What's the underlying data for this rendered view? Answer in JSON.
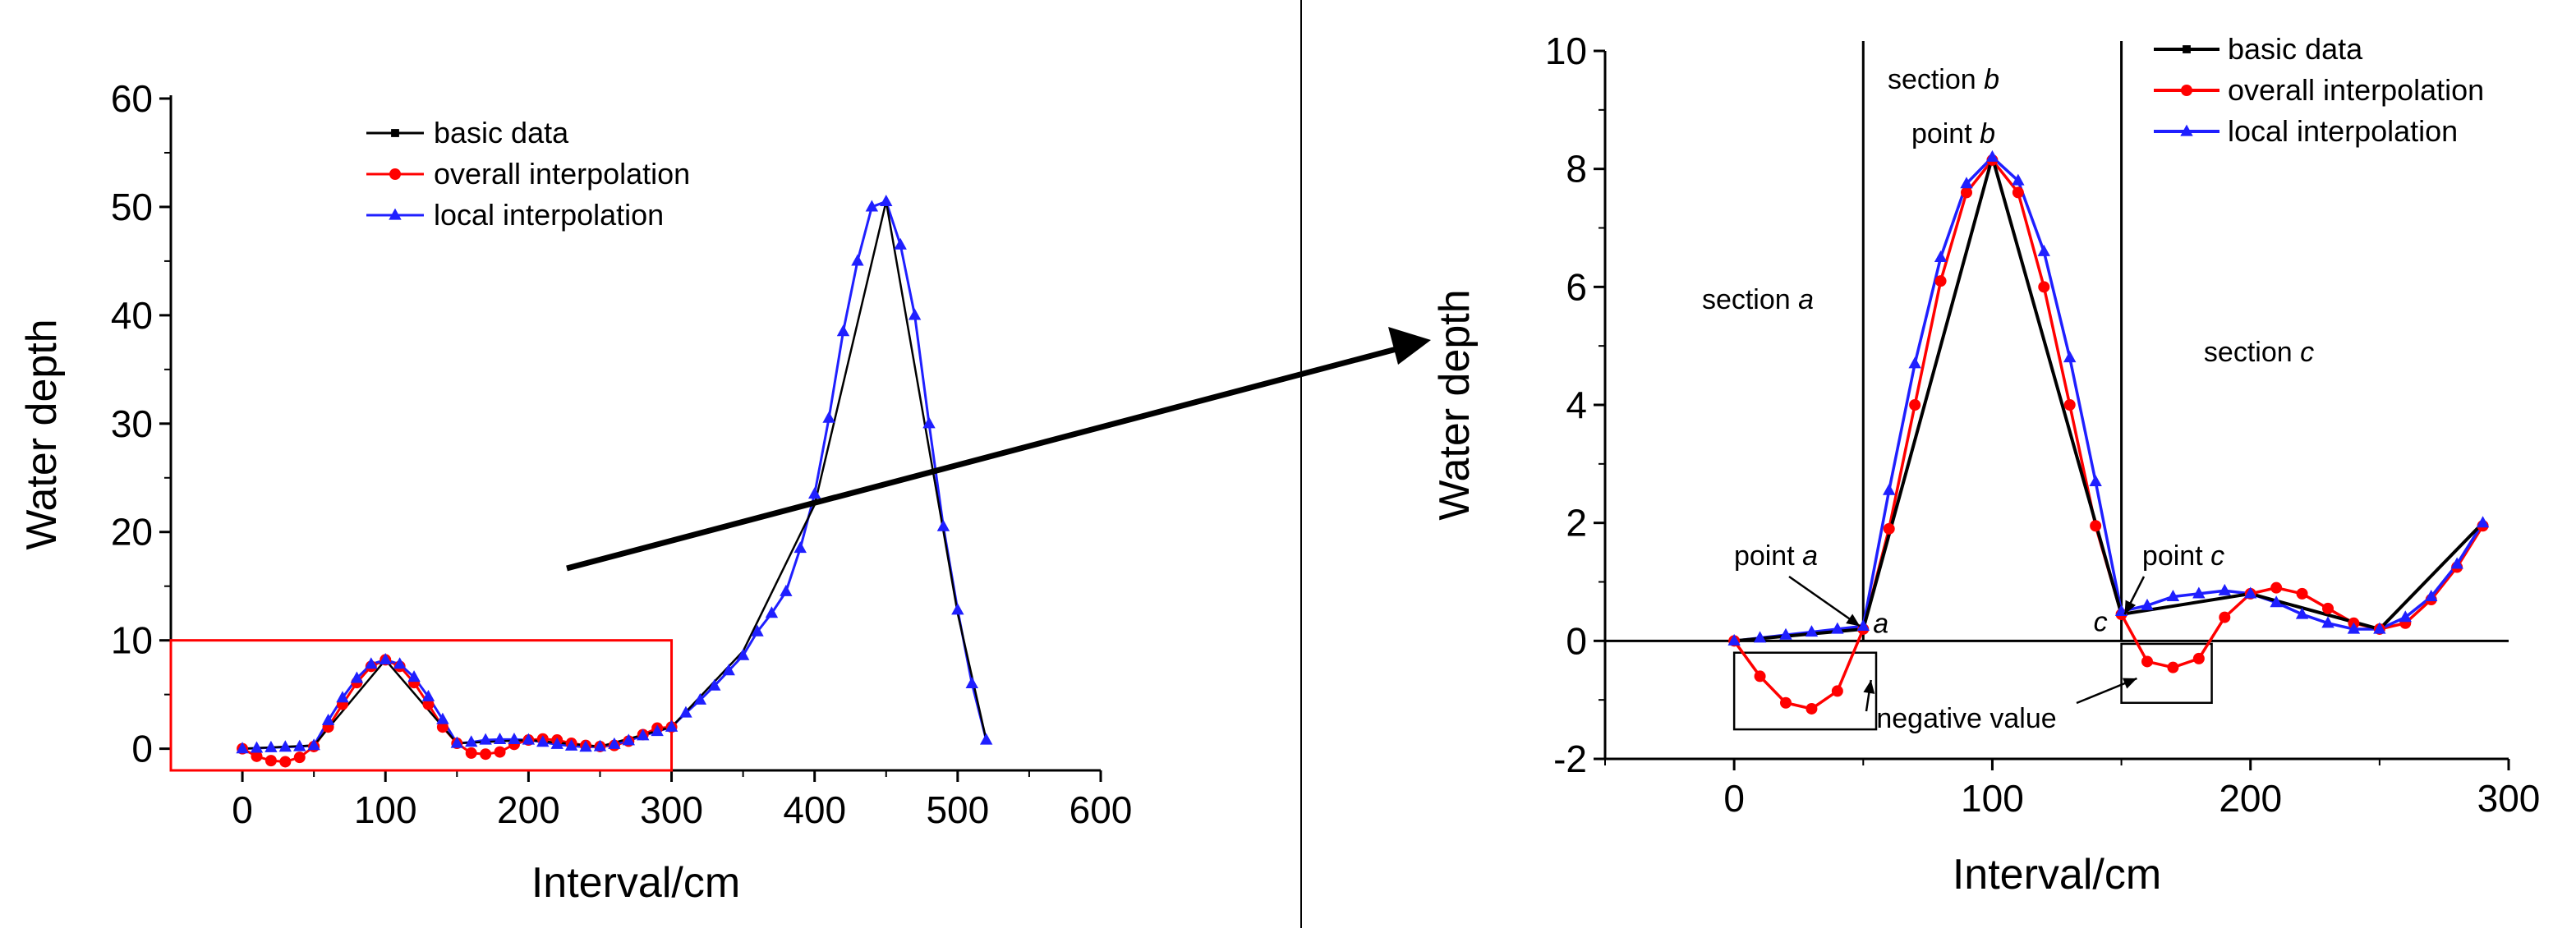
{
  "colors": {
    "basic": "#000000",
    "overall": "#ff0000",
    "local": "#1f1fff",
    "highlight": "#ff0000"
  },
  "legend": [
    "basic data",
    "overall interpolation",
    "local interpolation"
  ],
  "chart_data": [
    {
      "type": "line",
      "xlabel": "Interval/cm",
      "ylabel": "Water depth",
      "xlim": [
        -50,
        600
      ],
      "ylim": [
        -2,
        60
      ],
      "xticks": [
        "0",
        "100",
        "200",
        "300",
        "400",
        "500",
        "600"
      ],
      "yticks": [
        "0",
        "10",
        "20",
        "30",
        "40",
        "50",
        "60"
      ],
      "highlight_region": {
        "x": [
          -50,
          300
        ],
        "y": [
          -2,
          10
        ]
      },
      "series": [
        {
          "name": "basic data",
          "x": [
            0,
            50,
            100,
            150,
            200,
            250,
            300,
            350,
            400,
            450,
            500,
            520
          ],
          "y": [
            0,
            0.3,
            8.2,
            0.5,
            0.8,
            0.2,
            2.0,
            9.0,
            22.5,
            50.5,
            12.5,
            0.8
          ]
        },
        {
          "name": "overall interpolation",
          "x": [
            0,
            10,
            20,
            30,
            40,
            50,
            60,
            70,
            80,
            90,
            100,
            110,
            120,
            130,
            140,
            150,
            160,
            170,
            180,
            190,
            200,
            210,
            220,
            230,
            240,
            250,
            260,
            270,
            280,
            290,
            300
          ],
          "y": [
            0,
            -0.7,
            -1.1,
            -1.2,
            -0.8,
            0.2,
            2.0,
            4.1,
            6.1,
            7.6,
            8.2,
            7.6,
            6.1,
            4.1,
            2.0,
            0.5,
            -0.4,
            -0.5,
            -0.3,
            0.4,
            0.8,
            0.9,
            0.8,
            0.5,
            0.3,
            0.2,
            0.3,
            0.7,
            1.3,
            1.9,
            2.0
          ]
        },
        {
          "name": "local interpolation",
          "x": [
            0,
            10,
            20,
            30,
            40,
            50,
            60,
            70,
            80,
            90,
            100,
            110,
            120,
            130,
            140,
            150,
            160,
            170,
            180,
            190,
            200,
            210,
            220,
            230,
            240,
            250,
            260,
            270,
            280,
            290,
            300,
            310,
            320,
            330,
            340,
            350,
            360,
            370,
            380,
            390,
            400,
            410,
            420,
            430,
            440,
            450,
            460,
            470,
            480,
            490,
            500,
            510,
            520
          ],
          "y": [
            0,
            0.05,
            0.1,
            0.15,
            0.2,
            0.3,
            2.6,
            4.7,
            6.5,
            7.8,
            8.2,
            7.8,
            6.6,
            4.8,
            2.7,
            0.5,
            0.6,
            0.8,
            0.85,
            0.85,
            0.8,
            0.6,
            0.4,
            0.25,
            0.15,
            0.2,
            0.4,
            0.75,
            1.2,
            1.6,
            2.0,
            3.3,
            4.5,
            5.8,
            7.2,
            8.6,
            10.8,
            12.5,
            14.5,
            18.5,
            23.5,
            30.5,
            38.5,
            45.0,
            50.0,
            50.5,
            46.5,
            40.0,
            30.0,
            20.5,
            12.8,
            6.0,
            0.8
          ]
        }
      ]
    },
    {
      "type": "line",
      "xlabel": "Interval/cm",
      "ylabel": "Water depth",
      "xlim": [
        -50,
        300
      ],
      "ylim": [
        -2,
        10
      ],
      "xticks": [
        "0",
        "100",
        "200",
        "300"
      ],
      "yticks": [
        "-2",
        "0",
        "2",
        "4",
        "6",
        "8",
        "10"
      ],
      "section_lines_x": [
        50,
        150
      ],
      "annotations": {
        "section_a": "section a",
        "section_b": "section b",
        "section_c": "section c",
        "point_a": "point a",
        "point_b": "point b",
        "point_c": "point c",
        "label_a": "a",
        "label_c": "c",
        "negative_value": "negative value"
      },
      "series": [
        {
          "name": "basic data",
          "x": [
            0,
            50,
            100,
            150,
            200,
            250,
            290
          ],
          "y": [
            0,
            0.2,
            8.2,
            0.45,
            0.8,
            0.2,
            2.0
          ]
        },
        {
          "name": "overall interpolation",
          "x": [
            0,
            10,
            20,
            30,
            40,
            50,
            60,
            70,
            80,
            90,
            100,
            110,
            120,
            130,
            140,
            150,
            160,
            170,
            180,
            190,
            200,
            210,
            220,
            230,
            240,
            250,
            260,
            270,
            280,
            290
          ],
          "y": [
            0,
            -0.6,
            -1.05,
            -1.15,
            -0.85,
            0.2,
            1.9,
            4.0,
            6.1,
            7.6,
            8.15,
            7.6,
            6.0,
            4.0,
            1.95,
            0.45,
            -0.35,
            -0.45,
            -0.3,
            0.4,
            0.8,
            0.9,
            0.8,
            0.55,
            0.3,
            0.2,
            0.3,
            0.7,
            1.25,
            1.95
          ]
        },
        {
          "name": "local interpolation",
          "x": [
            0,
            10,
            20,
            30,
            40,
            50,
            60,
            70,
            80,
            90,
            100,
            110,
            120,
            130,
            140,
            150,
            160,
            170,
            180,
            190,
            200,
            210,
            220,
            230,
            240,
            250,
            260,
            270,
            280,
            290
          ],
          "y": [
            0,
            0.05,
            0.1,
            0.15,
            0.2,
            0.25,
            2.55,
            4.7,
            6.5,
            7.75,
            8.2,
            7.8,
            6.6,
            4.8,
            2.7,
            0.5,
            0.6,
            0.75,
            0.8,
            0.85,
            0.8,
            0.65,
            0.45,
            0.3,
            0.2,
            0.2,
            0.4,
            0.75,
            1.3,
            2.0
          ]
        }
      ]
    }
  ]
}
